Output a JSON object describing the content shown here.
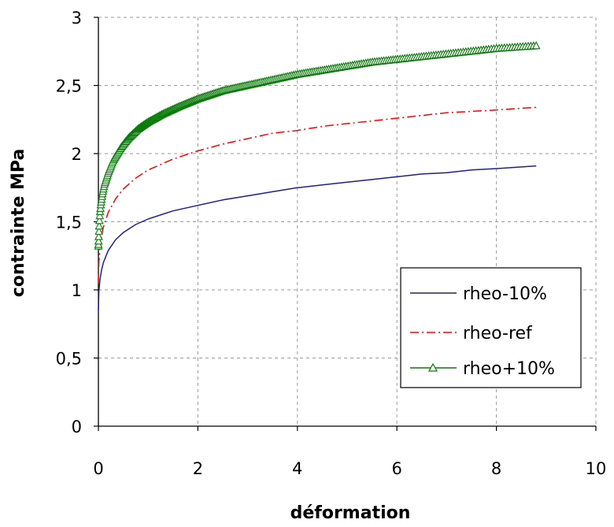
{
  "chart_data": {
    "type": "line",
    "title": "",
    "xlabel": "déformation",
    "ylabel": "contrainte MPa",
    "xlim": [
      0,
      10
    ],
    "ylim": [
      0,
      3
    ],
    "x_ticks": [
      0,
      2,
      4,
      6,
      8,
      10
    ],
    "y_ticks": [
      0,
      0.5,
      1,
      1.5,
      2,
      2.5,
      3
    ],
    "x_tick_labels": [
      "0",
      "2",
      "4",
      "6",
      "8",
      "10"
    ],
    "y_tick_labels": [
      "0",
      "0,5",
      "1",
      "1,5",
      "2",
      "2,5",
      "3"
    ],
    "grid": true,
    "legend_position": "bottom-right",
    "series": [
      {
        "name": "rheo-10%",
        "color": "#1f1f8f",
        "style": "solid",
        "marker": "none",
        "x": [
          0,
          0.01,
          0.03,
          0.06,
          0.1,
          0.2,
          0.35,
          0.5,
          0.75,
          1,
          1.5,
          2,
          2.5,
          3,
          3.5,
          4,
          4.5,
          5,
          5.5,
          6,
          6.5,
          7,
          7.5,
          8,
          8.8
        ],
        "y": [
          0.85,
          0.99,
          1.07,
          1.14,
          1.2,
          1.29,
          1.37,
          1.42,
          1.48,
          1.52,
          1.58,
          1.62,
          1.66,
          1.69,
          1.72,
          1.75,
          1.77,
          1.79,
          1.81,
          1.83,
          1.85,
          1.86,
          1.88,
          1.89,
          1.91
        ]
      },
      {
        "name": "rheo-ref",
        "color": "#ff0000",
        "style": "dashdot",
        "marker": "none",
        "x": [
          0,
          0.01,
          0.03,
          0.06,
          0.1,
          0.2,
          0.35,
          0.5,
          0.75,
          1,
          1.5,
          2,
          2.5,
          3,
          3.5,
          4,
          4.5,
          5,
          5.5,
          6,
          6.5,
          7,
          7.5,
          8,
          8.8
        ],
        "y": [
          1.05,
          1.2,
          1.31,
          1.39,
          1.46,
          1.57,
          1.67,
          1.74,
          1.82,
          1.88,
          1.96,
          2.02,
          2.07,
          2.11,
          2.15,
          2.17,
          2.2,
          2.22,
          2.24,
          2.26,
          2.28,
          2.3,
          2.31,
          2.32,
          2.34
        ]
      },
      {
        "name": "rheo+10%",
        "color": "#0a7a0a",
        "style": "solid",
        "marker": "triangle",
        "x": [
          0,
          0.01,
          0.02,
          0.03,
          0.05,
          0.08,
          0.12,
          0.2,
          0.3,
          0.45,
          0.6,
          0.8,
          1,
          1.3,
          1.6,
          2,
          2.5,
          3,
          3.5,
          4,
          4.5,
          5,
          5.5,
          6,
          6.5,
          7,
          7.5,
          8,
          8.8
        ],
        "y": [
          1.32,
          1.42,
          1.5,
          1.56,
          1.63,
          1.7,
          1.77,
          1.86,
          1.95,
          2.04,
          2.11,
          2.18,
          2.23,
          2.29,
          2.34,
          2.4,
          2.46,
          2.5,
          2.54,
          2.58,
          2.61,
          2.64,
          2.67,
          2.69,
          2.71,
          2.73,
          2.75,
          2.77,
          2.79
        ]
      }
    ]
  }
}
